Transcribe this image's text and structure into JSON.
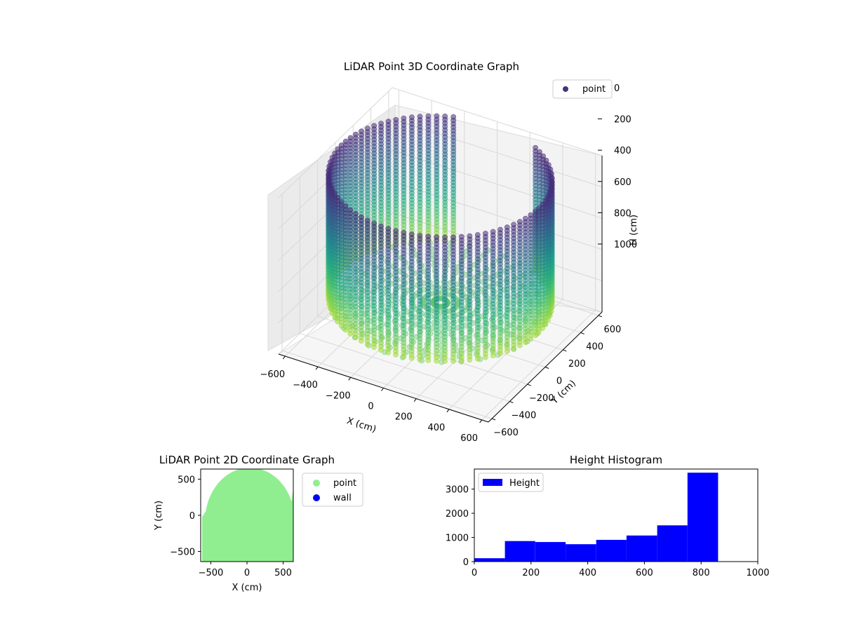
{
  "chart_data": [
    {
      "type": "scatter",
      "projection": "3d",
      "title": "LiDAR Point 3D Coordinate Graph",
      "xlabel": "X (cm)",
      "ylabel": "Y (cm)",
      "zlabel": "H (cm)",
      "xticks": [
        -600,
        -400,
        -200,
        0,
        200,
        400,
        600
      ],
      "yticks": [
        -600,
        -400,
        -200,
        0,
        200,
        400,
        600
      ],
      "zticks": [
        0,
        200,
        400,
        600,
        800,
        1000
      ],
      "xlim": [
        -640,
        640
      ],
      "ylim": [
        -640,
        640
      ],
      "zlim": [
        0,
        1000
      ],
      "z_axis_inverted": true,
      "grid": true,
      "colormap": "viridis",
      "legend": {
        "entries": [
          "point"
        ],
        "placement": "upper-right",
        "color": "#46327e"
      },
      "series": [
        {
          "name": "point",
          "shape": "cylindrical wall of points with open sector toward +Y, radius about 600 cm, heights 0–800 cm",
          "wall_radius": 600,
          "wall_height": [
            0,
            800
          ]
        }
      ]
    },
    {
      "type": "scatter",
      "title": "LiDAR Point 2D Coordinate Graph",
      "xlabel": "X (cm)",
      "ylabel": "Y (cm)",
      "xticks": [
        -500,
        0,
        500
      ],
      "yticks": [
        -500,
        0,
        500
      ],
      "xlim": [
        -640,
        640
      ],
      "ylim": [
        -640,
        640
      ],
      "grid": false,
      "legend": {
        "entries": [
          "point",
          "wall"
        ],
        "placement": "outside-right",
        "colors": [
          "#90ee90",
          "#0000ff"
        ]
      },
      "series": [
        {
          "name": "point",
          "color": "#90ee90",
          "note": "dense filled region covering the floor area"
        },
        {
          "name": "wall",
          "color": "#0000ff",
          "values": []
        }
      ]
    },
    {
      "type": "bar",
      "subtype": "histogram",
      "title": "Height Histogram",
      "xlabel": "",
      "ylabel": "",
      "xticks": [
        0,
        200,
        400,
        600,
        800,
        1000
      ],
      "yticks": [
        0,
        1000,
        2000,
        3000
      ],
      "xlim": [
        0,
        1000
      ],
      "ylim": [
        0,
        3830
      ],
      "color": "#0000ff",
      "legend": {
        "entries": [
          "Height"
        ],
        "placement": "upper-left"
      },
      "bin_edges": [
        0,
        108,
        215,
        322,
        430,
        537,
        645,
        752,
        860
      ],
      "values": [
        140,
        850,
        810,
        720,
        900,
        1080,
        1500,
        3680
      ]
    }
  ]
}
